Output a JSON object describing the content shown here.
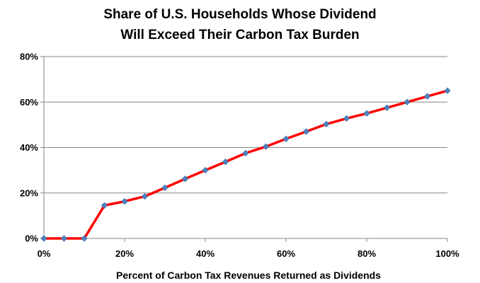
{
  "chart_data": {
    "type": "line",
    "title_lines": [
      "Share of U.S. Households Whose Dividend",
      "Will Exceed Their Carbon Tax Burden"
    ],
    "xlabel": "Percent of Carbon Tax Revenues Returned as Dividends",
    "ylabel": "",
    "xlim": [
      0,
      100
    ],
    "ylim": [
      0,
      80
    ],
    "x_ticks": [
      "0%",
      "20%",
      "40%",
      "60%",
      "80%",
      "100%"
    ],
    "x_tick_values": [
      0,
      20,
      40,
      60,
      80,
      100
    ],
    "y_ticks": [
      "0%",
      "20%",
      "40%",
      "60%",
      "80%"
    ],
    "y_tick_values": [
      0,
      20,
      40,
      60,
      80
    ],
    "grid": true,
    "legend": "none",
    "series": [
      {
        "x": [
          0,
          5,
          10,
          15,
          20,
          25,
          30,
          35,
          40,
          45,
          50,
          55,
          60,
          65,
          70,
          75,
          80,
          85,
          90,
          95,
          100
        ],
        "y": [
          0,
          0,
          0,
          14.5,
          16.3,
          18.5,
          22.3,
          26.2,
          30.0,
          33.7,
          37.5,
          40.4,
          43.8,
          47.0,
          50.3,
          52.8,
          55.0,
          57.5,
          60.0,
          62.5,
          65.0
        ],
        "line_color": "#ff0000",
        "marker_color": "#4f81bd"
      }
    ]
  }
}
